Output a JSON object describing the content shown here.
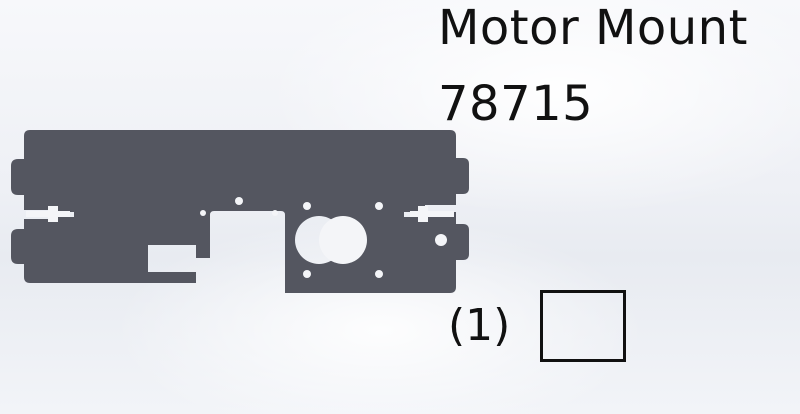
{
  "part": {
    "name": "Motor Mount",
    "number": "78715",
    "quantity": "(1)",
    "fill_color": "#545660",
    "hole_color": "#f4f5f8"
  },
  "checkbox": {
    "checked": false
  }
}
